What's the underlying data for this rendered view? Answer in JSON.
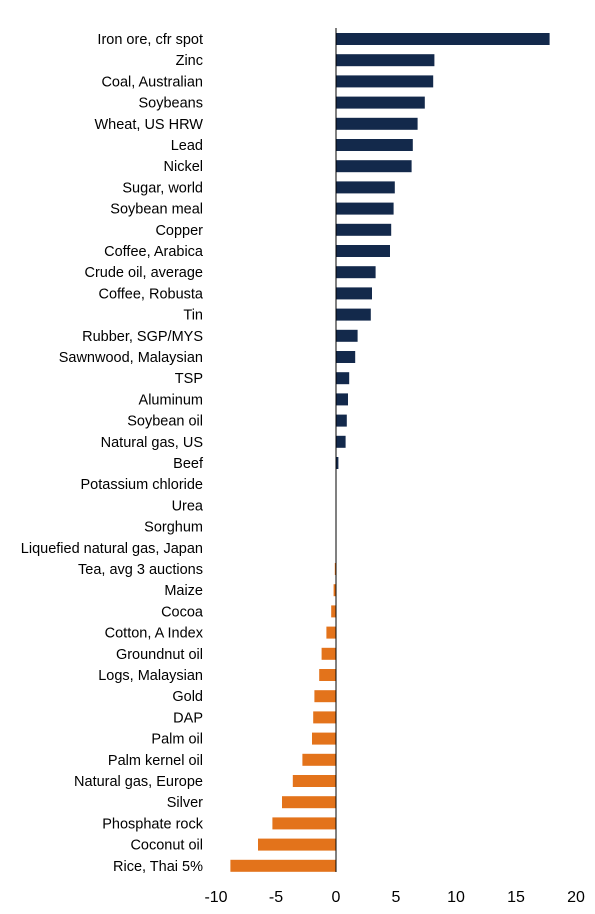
{
  "chart_data": {
    "type": "bar",
    "orientation": "horizontal",
    "title": "",
    "xlabel": "",
    "ylabel": "",
    "xlim": [
      -10,
      20
    ],
    "xticks": [
      -10,
      -5,
      0,
      5,
      10,
      15,
      20
    ],
    "grid": false,
    "legend": "none",
    "colors": {
      "positive": "#13294B",
      "negative": "#E3731B",
      "axis": "#000000"
    },
    "categories": [
      "Iron ore, cfr spot",
      "Zinc",
      "Coal, Australian",
      "Soybeans",
      "Wheat, US HRW",
      "Lead",
      "Nickel",
      "Sugar, world",
      "Soybean meal",
      "Copper",
      "Coffee, Arabica",
      "Crude oil, average",
      "Coffee, Robusta",
      "Tin",
      "Rubber, SGP/MYS",
      "Sawnwood, Malaysian",
      "TSP",
      "Aluminum",
      "Soybean oil",
      "Natural gas, US",
      "Beef",
      "Potassium chloride",
      "Urea",
      "Sorghum",
      "Liquefied natural gas, Japan",
      "Tea, avg 3 auctions",
      "Maize",
      "Cocoa",
      "Cotton, A Index",
      "Groundnut oil",
      "Logs, Malaysian",
      "Gold",
      "DAP",
      "Palm oil",
      "Palm kernel oil",
      "Natural gas, Europe",
      "Silver",
      "Phosphate rock",
      "Coconut oil",
      "Rice, Thai 5%"
    ],
    "values": [
      17.8,
      8.2,
      8.1,
      7.4,
      6.8,
      6.4,
      6.3,
      4.9,
      4.8,
      4.6,
      4.5,
      3.3,
      3.0,
      2.9,
      1.8,
      1.6,
      1.1,
      1.0,
      0.9,
      0.8,
      0.2,
      0,
      0,
      0,
      0,
      -0.1,
      -0.2,
      -0.4,
      -0.8,
      -1.2,
      -1.4,
      -1.8,
      -1.9,
      -2.0,
      -2.8,
      -3.6,
      -4.5,
      -5.3,
      -6.5,
      -8.8
    ]
  }
}
